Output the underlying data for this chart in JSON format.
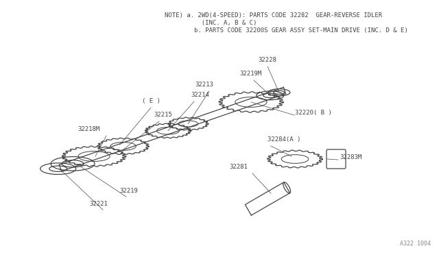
{
  "bg_color": "#ffffff",
  "line_color": "#444444",
  "text_color": "#444444",
  "note_line1": "NOTE) a. 2WD(4-SPEED): PARTS CODE 32282  GEAR-REVERSE IDLER",
  "note_line2": "          (INC. A, B & C)",
  "note_line3": "        b. PARTS CODE 32200S GEAR ASSY SET-MAIN DRIVE (INC. D & E)",
  "watermark": "A322 1004",
  "fig_width": 6.4,
  "fig_height": 3.72,
  "dpi": 100
}
